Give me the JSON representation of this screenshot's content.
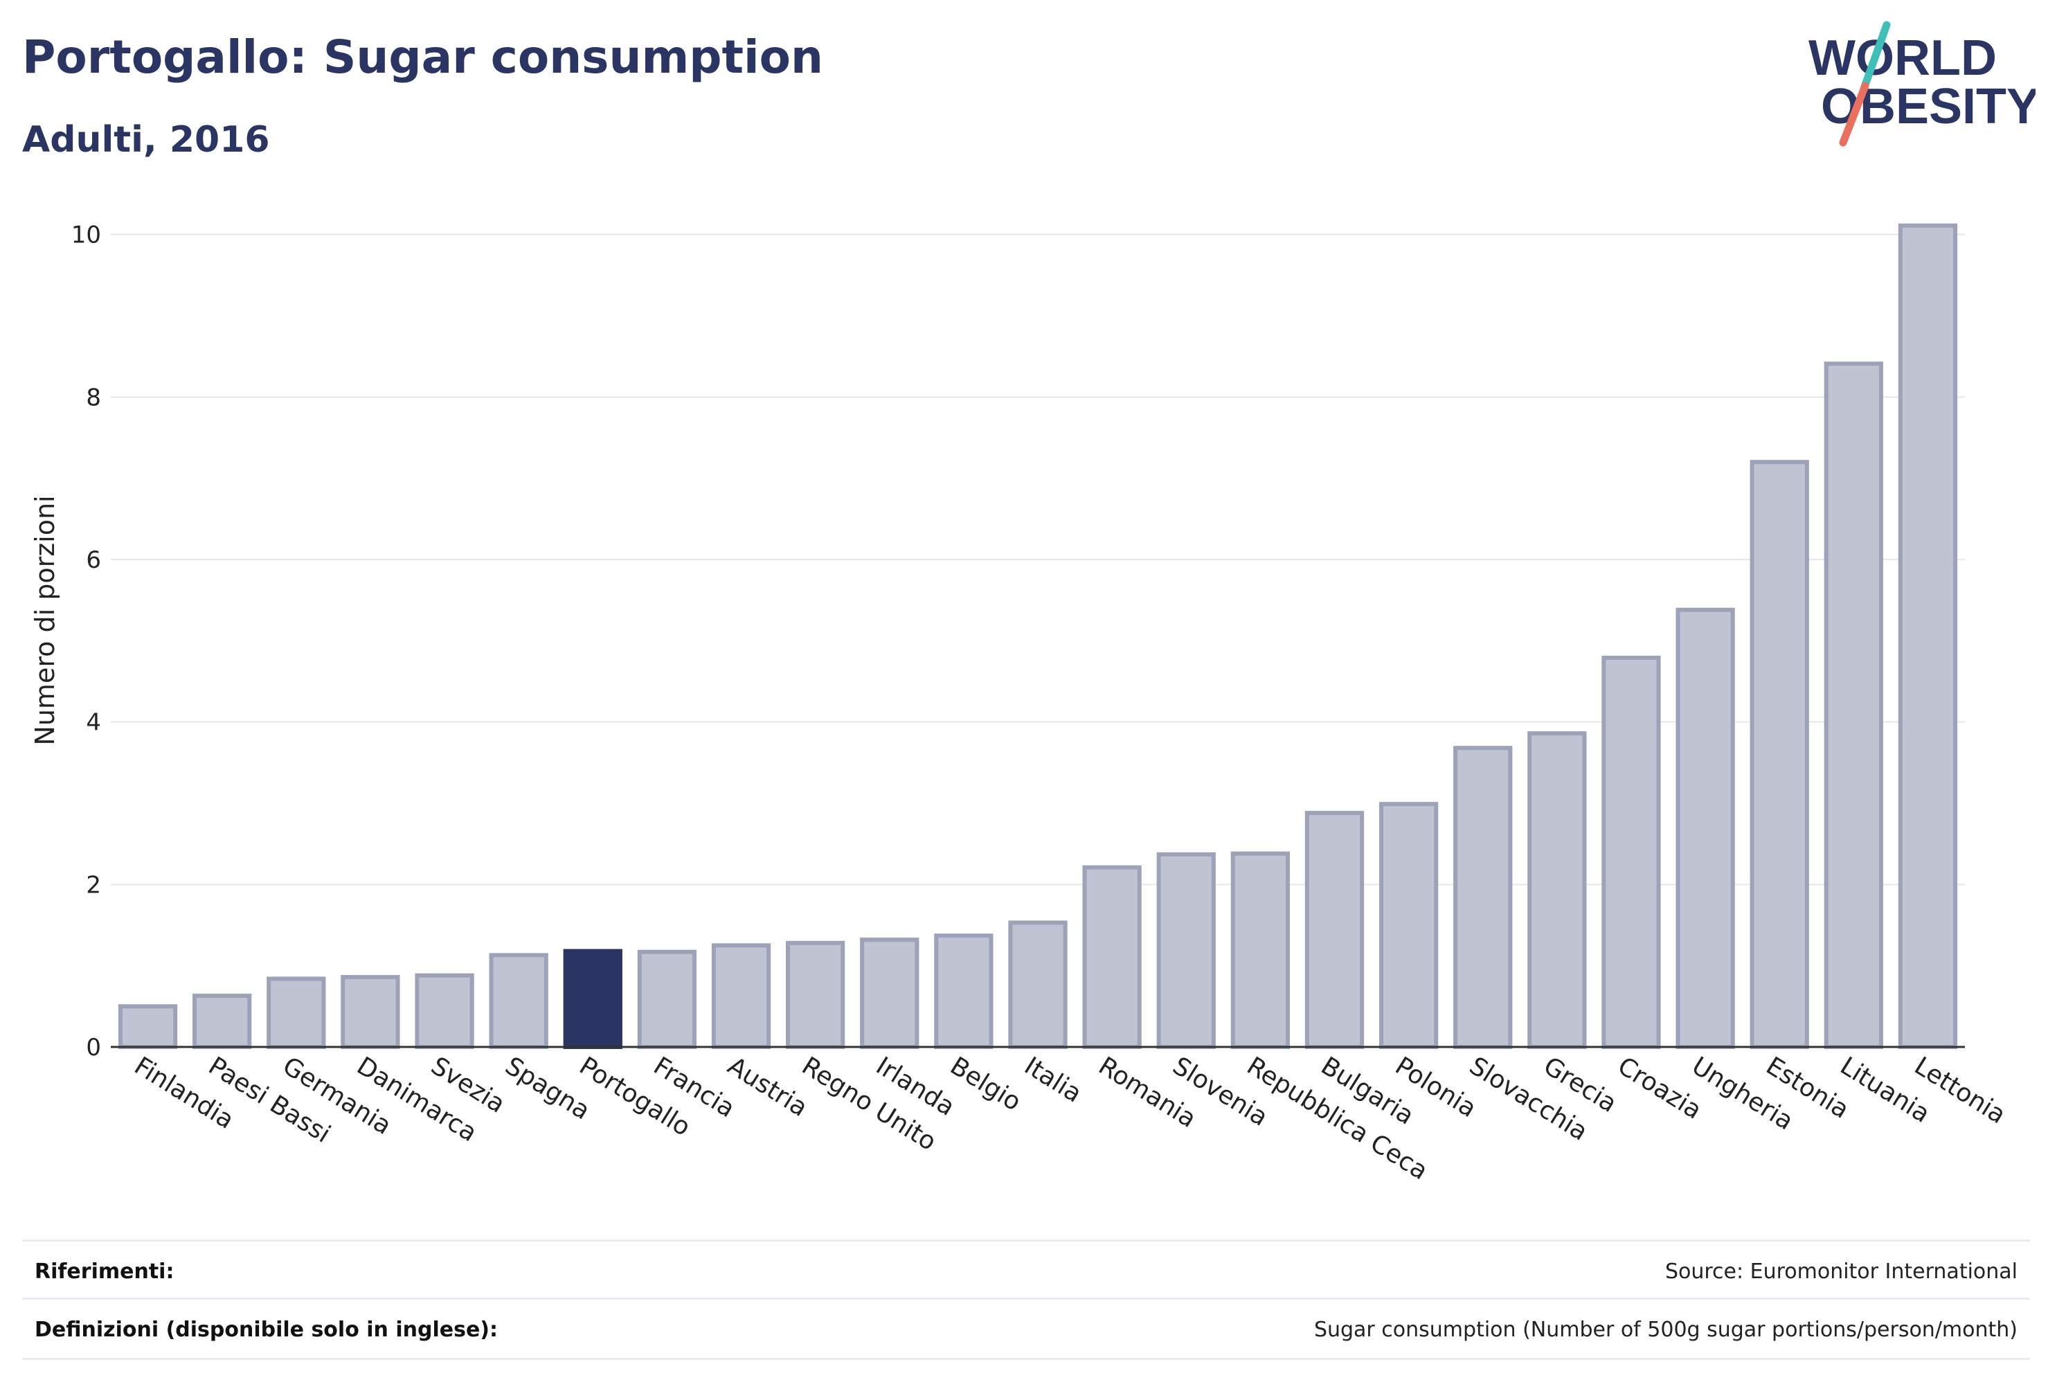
{
  "header": {
    "title": "Portogallo: Sugar consumption",
    "subtitle": "Adulti, 2016"
  },
  "logo": {
    "line1": "WORLD",
    "line2": "OBESITY",
    "colors": {
      "text": "#2b3563",
      "slash_top": "#3fbfb8",
      "slash_bottom": "#e8705c"
    }
  },
  "colors": {
    "highlight_bar": "#2b3563",
    "bar_fill": "#bfc3d2",
    "bar_stroke": "#9da2b9",
    "grid": "#e6e8ef",
    "axis_text": "#222222"
  },
  "chart_data": {
    "type": "bar",
    "title": "Portogallo: Sugar consumption",
    "subtitle": "Adulti, 2016",
    "xlabel": "",
    "ylabel": "Numero di porzioni",
    "ylim": [
      0,
      10.5
    ],
    "yticks": [
      0,
      2,
      4,
      6,
      8,
      10
    ],
    "grid": true,
    "highlight": "Portogallo",
    "categories": [
      "Finlandia",
      "Paesi Bassi",
      "Germania",
      "Danimarca",
      "Svezia",
      "Spagna",
      "Portogallo",
      "Francia",
      "Austria",
      "Regno Unito",
      "Irlanda",
      "Belgio",
      "Italia",
      "Romania",
      "Slovenia",
      "Repubblica Ceca",
      "Bulgaria",
      "Polonia",
      "Slovacchia",
      "Grecia",
      "Croazia",
      "Ungheria",
      "Estonia",
      "Lituania",
      "Lettonia"
    ],
    "values": [
      0.5,
      0.63,
      0.84,
      0.86,
      0.88,
      1.13,
      1.18,
      1.17,
      1.25,
      1.28,
      1.32,
      1.37,
      1.53,
      2.21,
      2.37,
      2.38,
      2.88,
      2.99,
      3.68,
      3.86,
      4.79,
      5.38,
      7.2,
      8.41,
      10.11
    ]
  },
  "footer": {
    "references_label": "Riferimenti:",
    "references_value": "Source: Euromonitor International",
    "definitions_label": "Definizioni (disponibile solo in inglese):",
    "definitions_value": "Sugar consumption (Number of 500g sugar portions/person/month)"
  }
}
